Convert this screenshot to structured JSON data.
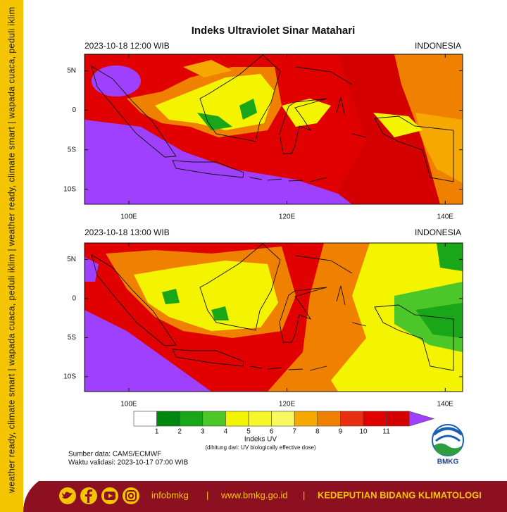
{
  "title": "Indeks Ultraviolet Sinar Matahari",
  "sidebar": "weather ready, climate smart | wapada cuaca, peduli iklim | weather ready, climate smart | wapada cuaca, peduli iklim",
  "maps": [
    {
      "time": "2023-10-18 12:00 WIB",
      "region": "INDONESIA"
    },
    {
      "time": "2023-10-18 13:00 WIB",
      "region": "INDONESIA"
    }
  ],
  "axes": {
    "lon_range": [
      94.4,
      142.2
    ],
    "lat_range": [
      7.1,
      -11.9
    ],
    "lon_ticks": [
      {
        "value": 100,
        "label": "100E"
      },
      {
        "value": 120,
        "label": "120E"
      },
      {
        "value": 140,
        "label": "140E"
      }
    ],
    "lat_ticks": [
      {
        "value": 5,
        "label": "5N"
      },
      0,
      {
        "value": -5,
        "label": "5S"
      },
      {
        "value": -10,
        "label": "10S"
      }
    ]
  },
  "colorbar": {
    "colors": [
      "#ffffff",
      "#00870f",
      "#19a619",
      "#4cc72a",
      "#f4f400",
      "#f6f62a",
      "#f8f860",
      "#f7a800",
      "#f08000",
      "#e83010",
      "#e00000",
      "#d40000",
      "#a040ff"
    ],
    "ticks": [
      1,
      2,
      3,
      4,
      5,
      6,
      7,
      8,
      9,
      10,
      11
    ],
    "label": "Indeks UV",
    "note": "(dihitung dari: UV biologically effective dose)"
  },
  "source": "Sumber data: CAMS/ECMWF",
  "validity": "Waktu validasi: 2023-10-17 07:00 WIB",
  "logo": "BMKG",
  "footer": {
    "handle": "infobmkg",
    "separator": "|",
    "website": "www.bmkg.go.id",
    "unit": "KEDEPUTIAN BIDANG KLIMATOLOGI"
  }
}
